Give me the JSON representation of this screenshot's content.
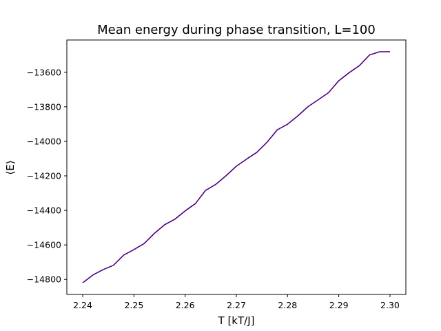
{
  "chart_data": {
    "type": "line",
    "title": "Mean energy during phase transition, L=100",
    "xlabel": "T [kT/J]",
    "ylabel": "⟨E⟩",
    "xlim": [
      2.2369,
      2.3031
    ],
    "ylim": [
      -14887,
      -13413
    ],
    "xticks": [
      2.24,
      2.25,
      2.26,
      2.27,
      2.28,
      2.29,
      2.3
    ],
    "xtick_labels": [
      "2.24",
      "2.25",
      "2.26",
      "2.27",
      "2.28",
      "2.29",
      "2.30"
    ],
    "yticks": [
      -14800,
      -14600,
      -14400,
      -14200,
      -14000,
      -13800,
      -13600
    ],
    "ytick_labels": [
      "−14800",
      "−14600",
      "−14400",
      "−14200",
      "−14000",
      "−13800",
      "−13600"
    ],
    "grid": false,
    "series": [
      {
        "color": "#4b0082",
        "x": [
          2.24,
          2.242,
          2.244,
          2.246,
          2.248,
          2.25,
          2.252,
          2.254,
          2.256,
          2.258,
          2.26,
          2.262,
          2.264,
          2.266,
          2.268,
          2.27,
          2.272,
          2.274,
          2.276,
          2.278,
          2.28,
          2.282,
          2.284,
          2.286,
          2.288,
          2.29,
          2.292,
          2.294,
          2.296,
          2.298,
          2.3
        ],
        "y": [
          -14819,
          -14774,
          -14743,
          -14718,
          -14659,
          -14627,
          -14592,
          -14533,
          -14483,
          -14451,
          -14403,
          -14361,
          -14284,
          -14249,
          -14199,
          -14144,
          -14103,
          -14064,
          -14005,
          -13933,
          -13901,
          -13853,
          -13799,
          -13759,
          -13718,
          -13649,
          -13603,
          -13562,
          -13500,
          -13481,
          -13481
        ]
      }
    ]
  }
}
